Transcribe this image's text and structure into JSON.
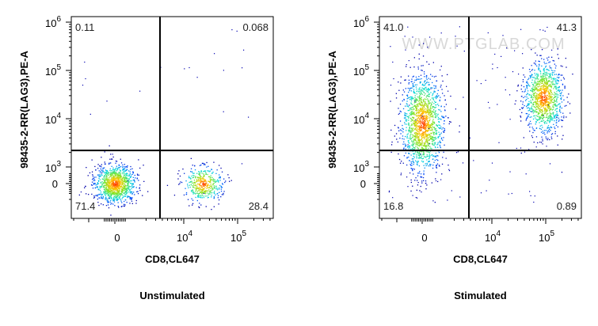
{
  "chart_data": [
    {
      "type": "scatter",
      "subtitle": "Unstimulated",
      "xlabel": "CD8,CL647",
      "ylabel": "98435-2-RR(LAG3),PE-A",
      "x_scale": "biexponential",
      "y_scale": "biexponential",
      "x_ticks": [
        {
          "value": 0,
          "label": "0"
        },
        {
          "value": 10000,
          "base": "10",
          "exp": "4"
        },
        {
          "value": 100000,
          "base": "10",
          "exp": "5"
        }
      ],
      "y_ticks": [
        {
          "value": 0,
          "label": "0"
        },
        {
          "value": 1000,
          "base": "10",
          "exp": "3"
        },
        {
          "value": 10000,
          "base": "10",
          "exp": "4"
        },
        {
          "value": 100000,
          "base": "10",
          "exp": "5"
        },
        {
          "value": 1000000,
          "base": "10",
          "exp": "6"
        }
      ],
      "quadrant_gate": {
        "x": 3000,
        "y": 2200
      },
      "quadrants": {
        "upper_left": "0.11",
        "upper_right": "0.068",
        "lower_left": "71.4",
        "lower_right": "28.4"
      },
      "populations": [
        {
          "x": 0,
          "y": 0,
          "fraction": 0.714
        },
        {
          "x": 15000,
          "y": 0,
          "fraction": 0.284
        }
      ],
      "watermark": ""
    },
    {
      "type": "scatter",
      "subtitle": "Stimulated",
      "xlabel": "CD8,CL647",
      "ylabel": "98435-2-RR(LAG3),PE-A",
      "x_scale": "biexponential",
      "y_scale": "biexponential",
      "x_ticks": [
        {
          "value": 0,
          "label": "0"
        },
        {
          "value": 10000,
          "base": "10",
          "exp": "4"
        },
        {
          "value": 100000,
          "base": "10",
          "exp": "5"
        }
      ],
      "y_ticks": [
        {
          "value": 0,
          "label": "0"
        },
        {
          "value": 1000,
          "base": "10",
          "exp": "3"
        },
        {
          "value": 10000,
          "base": "10",
          "exp": "4"
        },
        {
          "value": 100000,
          "base": "10",
          "exp": "5"
        },
        {
          "value": 1000000,
          "base": "10",
          "exp": "6"
        }
      ],
      "quadrant_gate": {
        "x": 3000,
        "y": 2200
      },
      "quadrants": {
        "upper_left": "41.0",
        "upper_right": "41.3",
        "lower_left": "16.8",
        "lower_right": "0.89"
      },
      "populations": [
        {
          "x": 0,
          "y": 8000,
          "fraction": 0.578
        },
        {
          "x": 30000,
          "y": 28000,
          "fraction": 0.422
        }
      ],
      "watermark": "WWW.PTGLAB.COM"
    }
  ],
  "colors": {
    "density_low": "#0000c8",
    "density_mid": "#00e060",
    "density_high": "#ff2000"
  }
}
